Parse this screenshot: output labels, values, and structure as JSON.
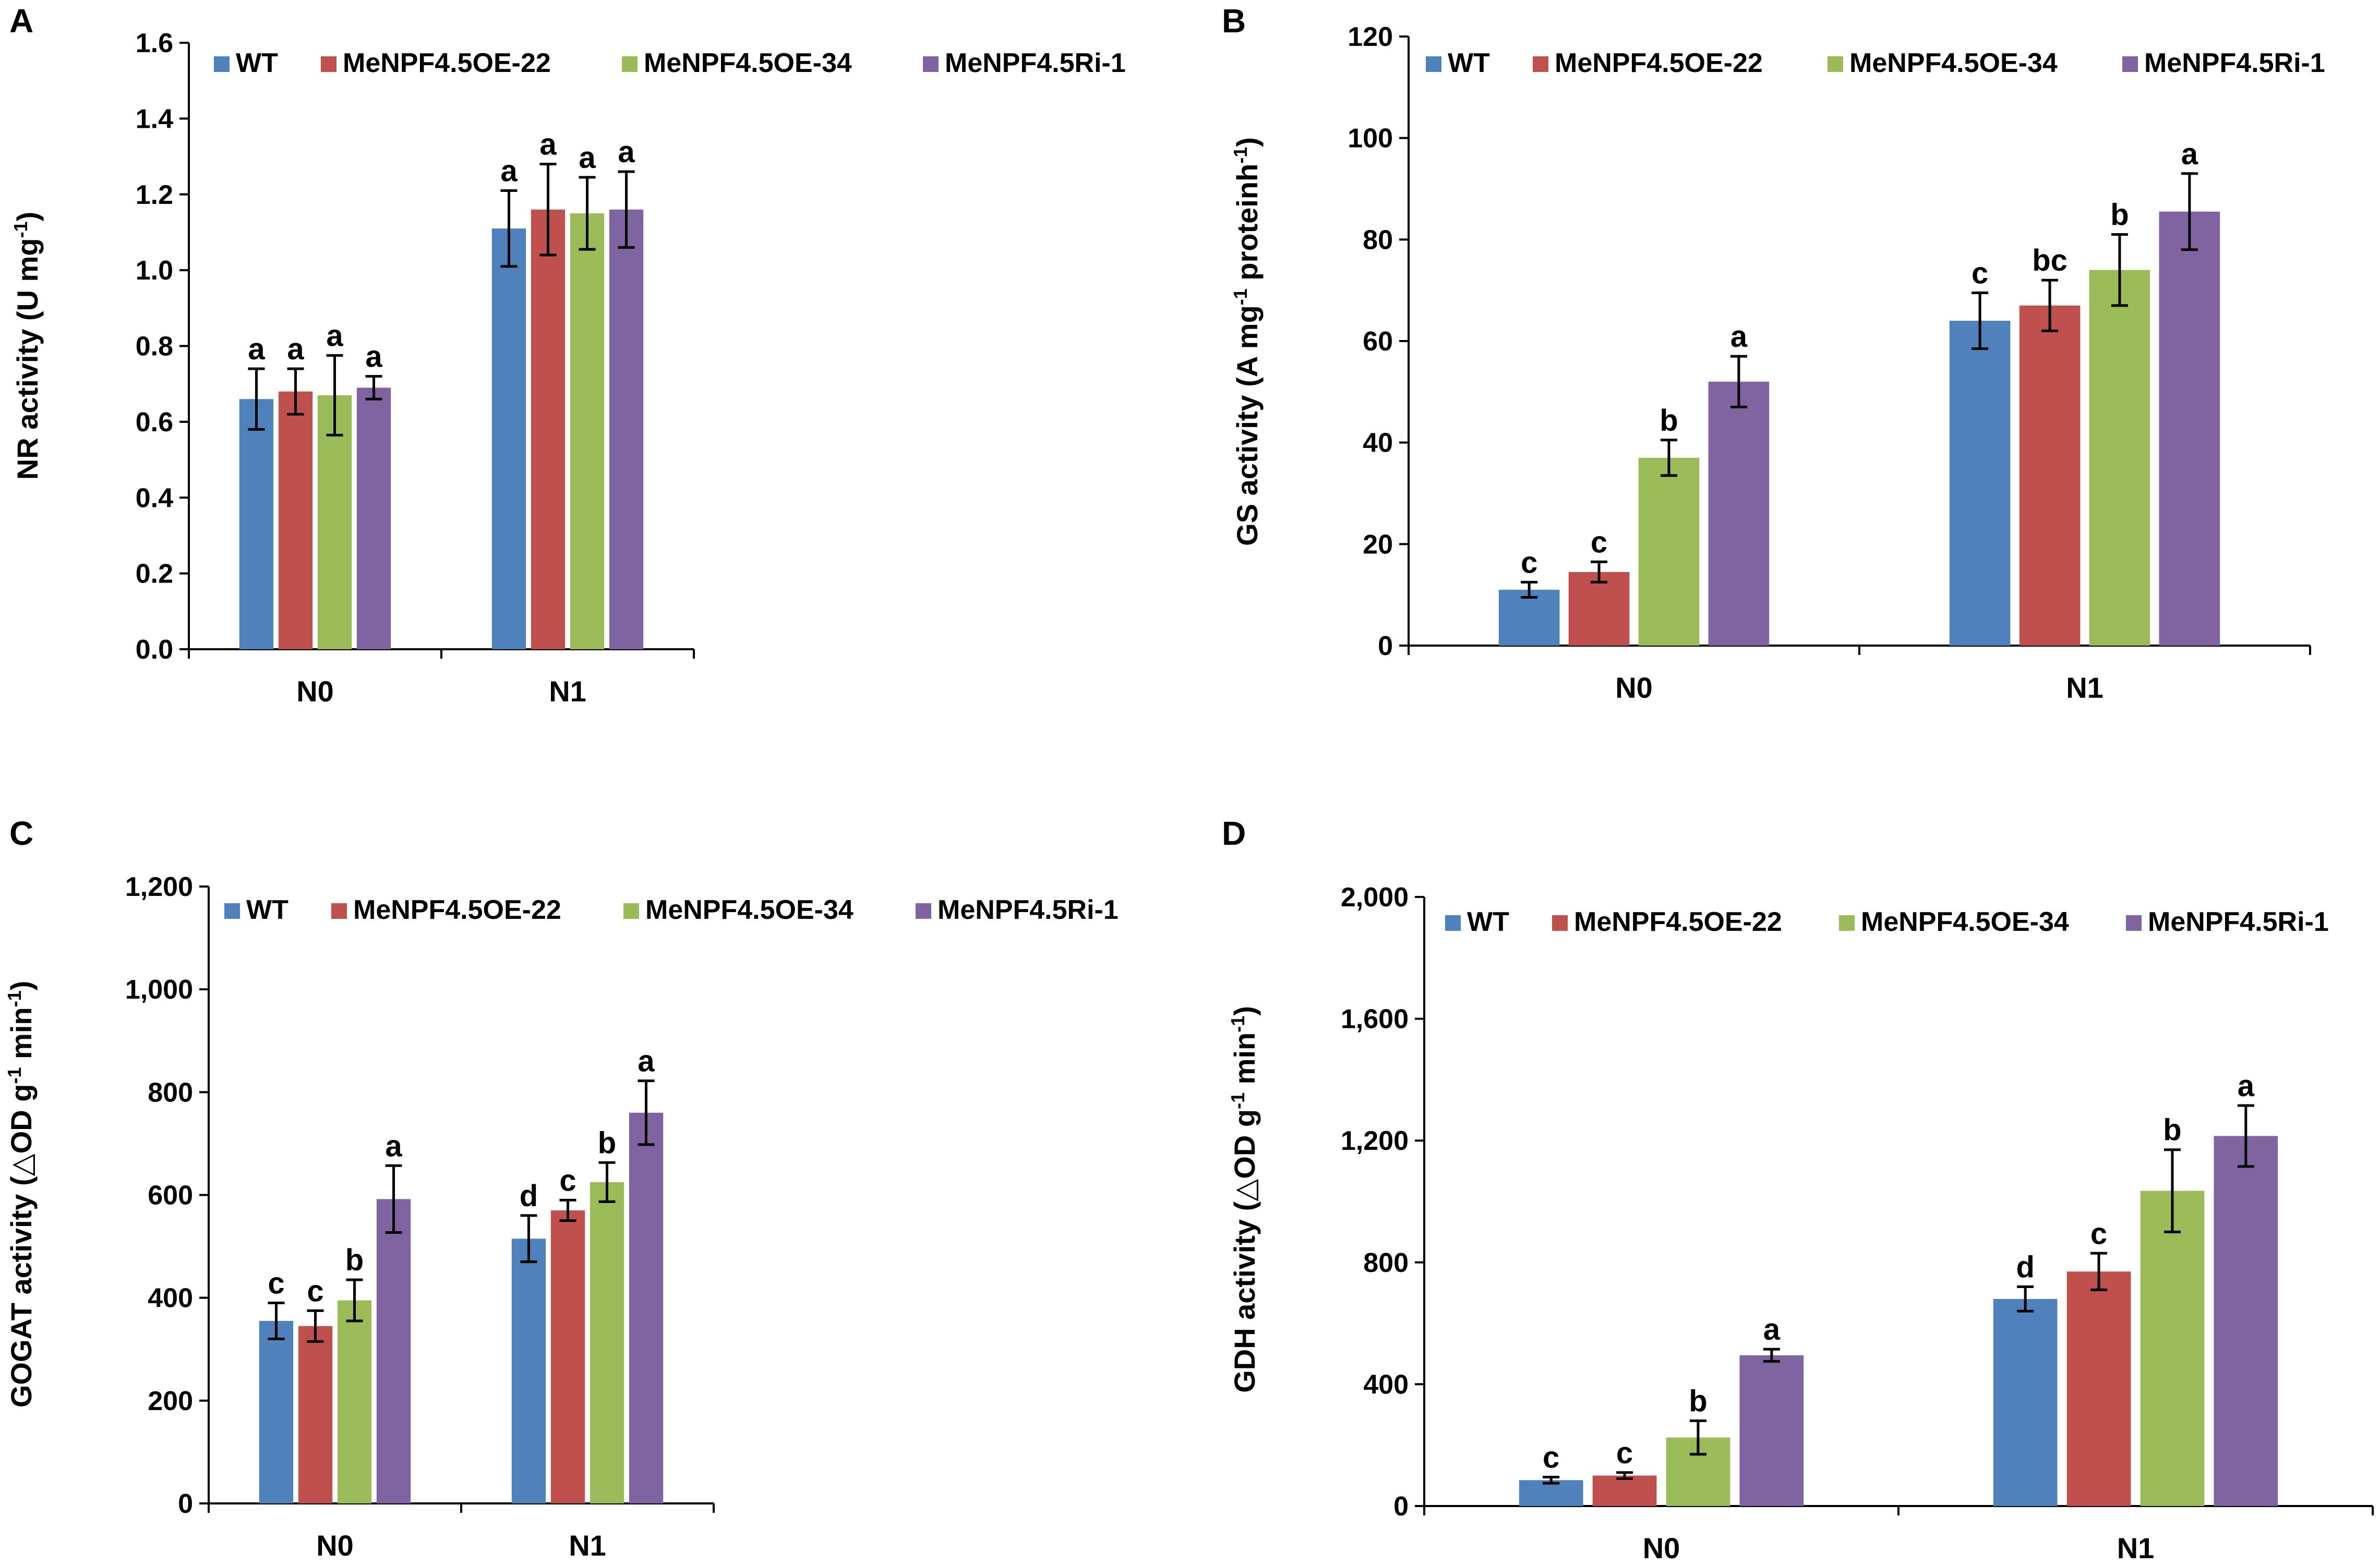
{
  "colors": {
    "WT": "#4f81bd",
    "MeNPF4.5OE-22": "#c0504d",
    "MeNPF4.5OE-34": "#9bbb59",
    "MeNPF4.5Ri-1": "#8064a2",
    "axis": "#000000",
    "error_bar": "#000000"
  },
  "legend": [
    "WT",
    "MeNPF4.5OE-22",
    "MeNPF4.5OE-34",
    "MeNPF4.5Ri-1"
  ],
  "chart_data": [
    {
      "id": "A",
      "type": "bar",
      "panel_label": "A",
      "ylabel": "NR activity (U mg",
      "ylabel_sup": "-1",
      "ylabel_tail": ")",
      "xlabel": "",
      "categories": [
        "N0",
        "N1"
      ],
      "ylim": [
        0,
        1.6
      ],
      "yticks": [
        "0.0",
        "0.2",
        "0.4",
        "0.6",
        "0.8",
        "1.0",
        "1.2",
        "1.4",
        "1.6"
      ],
      "legend_position": "top",
      "series": [
        {
          "name": "WT",
          "values": [
            0.66,
            1.11
          ],
          "errors": [
            0.08,
            0.1
          ],
          "letters": [
            "a",
            "a"
          ]
        },
        {
          "name": "MeNPF4.5OE-22",
          "values": [
            0.68,
            1.16
          ],
          "errors": [
            0.06,
            0.12
          ],
          "letters": [
            "a",
            "a"
          ]
        },
        {
          "name": "MeNPF4.5OE-34",
          "values": [
            0.67,
            1.15
          ],
          "errors": [
            0.105,
            0.095
          ],
          "letters": [
            "a",
            "a"
          ]
        },
        {
          "name": "MeNPF4.5Ri-1",
          "values": [
            0.69,
            1.16
          ],
          "errors": [
            0.03,
            0.1
          ],
          "letters": [
            "a",
            "a"
          ]
        }
      ]
    },
    {
      "id": "B",
      "type": "bar",
      "panel_label": "B",
      "ylabel": "GS activity (A mg",
      "ylabel_sup": "-1",
      "ylabel_tail": " proteinh",
      "ylabel_sup2": "-1",
      "ylabel_tail2": ")",
      "xlabel": "",
      "categories": [
        "N0",
        "N1"
      ],
      "ylim": [
        0,
        120
      ],
      "yticks": [
        "0",
        "20",
        "40",
        "60",
        "80",
        "100",
        "120"
      ],
      "legend_position": "top",
      "series": [
        {
          "name": "WT",
          "values": [
            11,
            64
          ],
          "errors": [
            1.5,
            5.5
          ],
          "letters": [
            "c",
            "c"
          ]
        },
        {
          "name": "MeNPF4.5OE-22",
          "values": [
            14.5,
            67
          ],
          "errors": [
            2,
            5
          ],
          "letters": [
            "c",
            "bc"
          ]
        },
        {
          "name": "MeNPF4.5OE-34",
          "values": [
            37,
            74
          ],
          "errors": [
            3.5,
            7
          ],
          "letters": [
            "b",
            "b"
          ]
        },
        {
          "name": "MeNPF4.5Ri-1",
          "values": [
            52,
            85.5
          ],
          "errors": [
            5,
            7.5
          ],
          "letters": [
            "a",
            "a"
          ]
        }
      ]
    },
    {
      "id": "C",
      "type": "bar",
      "panel_label": "C",
      "ylabel": "GOGAT activity (△OD g",
      "ylabel_sup": "-1",
      "ylabel_tail": " min",
      "ylabel_sup2": "-1",
      "ylabel_tail2": ")",
      "xlabel": "",
      "categories": [
        "N0",
        "N1"
      ],
      "ylim": [
        0,
        1200
      ],
      "yticks": [
        "0",
        "200",
        "400",
        "600",
        "800",
        "1,000",
        "1,200"
      ],
      "legend_position": "top",
      "series": [
        {
          "name": "WT",
          "values": [
            355,
            515
          ],
          "errors": [
            35,
            45
          ],
          "letters": [
            "c",
            "d"
          ]
        },
        {
          "name": "MeNPF4.5OE-22",
          "values": [
            345,
            570
          ],
          "errors": [
            30,
            20
          ],
          "letters": [
            "c",
            "c"
          ]
        },
        {
          "name": "MeNPF4.5OE-34",
          "values": [
            395,
            625
          ],
          "errors": [
            40,
            38
          ],
          "letters": [
            "b",
            "b"
          ]
        },
        {
          "name": "MeNPF4.5Ri-1",
          "values": [
            592,
            760
          ],
          "errors": [
            65,
            62
          ],
          "letters": [
            "a",
            "a"
          ]
        }
      ]
    },
    {
      "id": "D",
      "type": "bar",
      "panel_label": "D",
      "ylabel": "GDH activity (△OD g",
      "ylabel_sup": "-1",
      "ylabel_tail": " min",
      "ylabel_sup2": "-1",
      "ylabel_tail2": ")",
      "xlabel": "",
      "categories": [
        "N0",
        "N1"
      ],
      "ylim": [
        0,
        2000
      ],
      "yticks": [
        "0",
        "400",
        "800",
        "1,200",
        "1,600",
        "2,000"
      ],
      "legend_position": "top",
      "series": [
        {
          "name": "WT",
          "values": [
            85,
            680
          ],
          "errors": [
            10,
            40
          ],
          "letters": [
            "c",
            "d"
          ]
        },
        {
          "name": "MeNPF4.5OE-22",
          "values": [
            100,
            770
          ],
          "errors": [
            10,
            60
          ],
          "letters": [
            "c",
            "c"
          ]
        },
        {
          "name": "MeNPF4.5OE-34",
          "values": [
            225,
            1035
          ],
          "errors": [
            55,
            135
          ],
          "letters": [
            "b",
            "b"
          ]
        },
        {
          "name": "MeNPF4.5Ri-1",
          "values": [
            495,
            1215
          ],
          "errors": [
            20,
            100
          ],
          "letters": [
            "a",
            "a"
          ]
        }
      ]
    }
  ]
}
